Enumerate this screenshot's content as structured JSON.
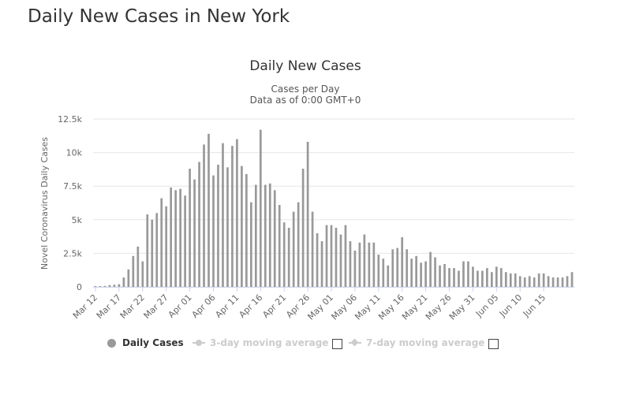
{
  "page": {
    "title": "Daily New Cases in New York"
  },
  "legend": {
    "daily": "Daily Cases",
    "ma3": "3-day moving average",
    "ma7": "7-day moving average"
  },
  "colors": {
    "bar": "#999999",
    "grid": "#e6e6e6",
    "axis": "#ccd6eb",
    "legend_off": "#cccccc"
  },
  "chart_data": {
    "type": "bar",
    "title": "Daily New Cases",
    "subtitle_lines": [
      "Cases per Day",
      "Data as of 0:00 GMT+0"
    ],
    "ylabel": "Novel Coronavirus Daily Cases",
    "xlabel": "",
    "ylim": [
      0,
      12500
    ],
    "yticks": [
      0,
      2500,
      5000,
      7500,
      10000,
      12500
    ],
    "ytick_labels": [
      "0",
      "2.5k",
      "5k",
      "7.5k",
      "10k",
      "12.5k"
    ],
    "grid": true,
    "legend_position": "bottom",
    "xtick_labels": [
      "Mar 12",
      "Mar 17",
      "Mar 22",
      "Mar 27",
      "Apr 01",
      "Apr 06",
      "Apr 11",
      "Apr 16",
      "Apr 21",
      "Apr 26",
      "May 01",
      "May 06",
      "May 11",
      "May 16",
      "May 21",
      "May 26",
      "May 31",
      "Jun 05",
      "Jun 10",
      "Jun 15"
    ],
    "start_label": "Mar 12",
    "tick_every": 5,
    "series": [
      {
        "name": "Daily Cases",
        "values": [
          60,
          60,
          70,
          130,
          160,
          200,
          700,
          1300,
          2300,
          3000,
          1900,
          5400,
          5000,
          5500,
          6600,
          6000,
          7400,
          7200,
          7300,
          6800,
          8800,
          8000,
          9300,
          10600,
          11400,
          8300,
          9100,
          10700,
          8900,
          10500,
          11000,
          9000,
          8400,
          6300,
          7600,
          11700,
          7600,
          7700,
          7200,
          6100,
          4800,
          4400,
          5600,
          6300,
          8800,
          10800,
          5600,
          4000,
          3400,
          4600,
          4600,
          4400,
          3900,
          4600,
          3400,
          2700,
          3300,
          3900,
          3300,
          3300,
          2400,
          2100,
          1600,
          2800,
          2900,
          3700,
          2800,
          2100,
          2300,
          1800,
          1900,
          2600,
          2200,
          1600,
          1700,
          1400,
          1400,
          1200,
          1900,
          1900,
          1500,
          1200,
          1200,
          1400,
          1100,
          1500,
          1400,
          1100,
          1000,
          1000,
          800,
          700,
          800,
          700,
          1000,
          1000,
          800,
          700,
          700,
          700,
          800,
          1100
        ]
      }
    ]
  }
}
